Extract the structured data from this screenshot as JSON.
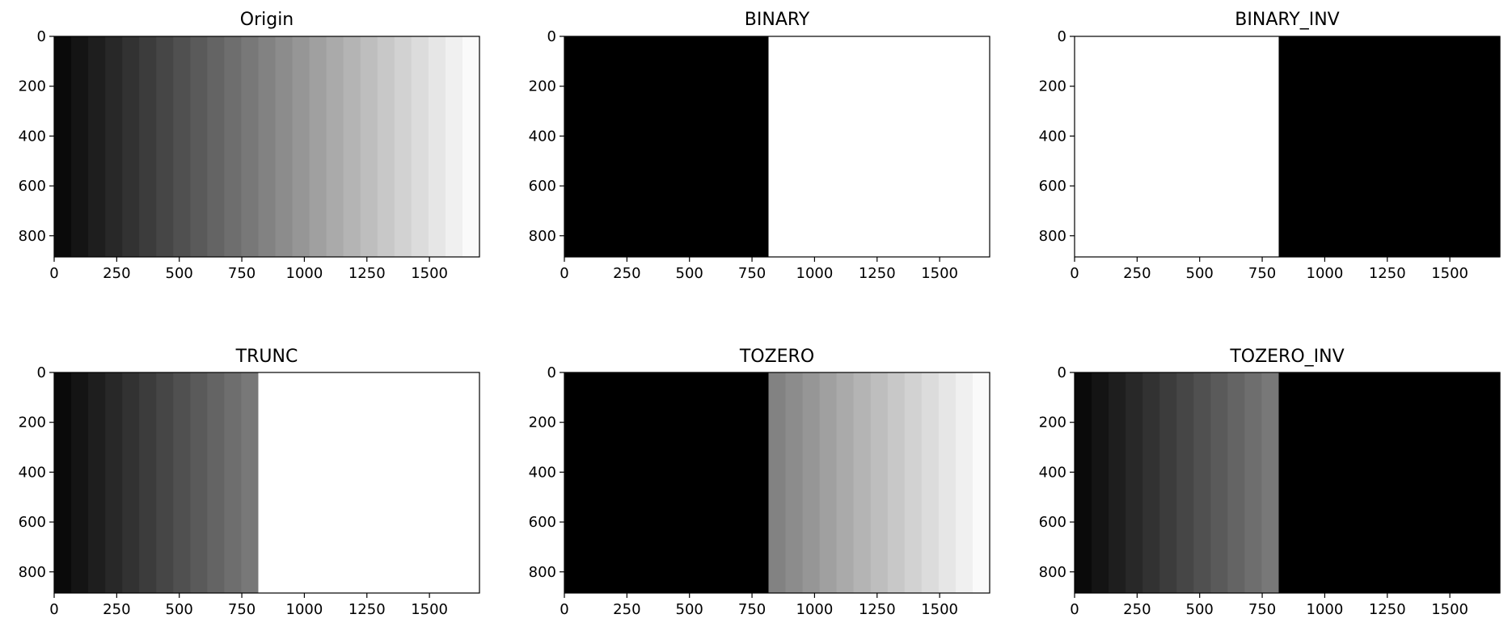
{
  "chart_data": [
    {
      "type": "heatmap",
      "title": "Origin",
      "threshold_mode": "none",
      "xlim": [
        0,
        1700
      ],
      "ylim": [
        885,
        0
      ],
      "x_ticks": [
        0,
        250,
        500,
        750,
        1000,
        1250,
        1500
      ],
      "y_ticks": [
        0,
        200,
        400,
        600,
        800
      ],
      "colormap": "gray"
    },
    {
      "type": "heatmap",
      "title": "BINARY",
      "threshold_mode": "binary",
      "xlim": [
        0,
        1700
      ],
      "ylim": [
        885,
        0
      ],
      "x_ticks": [
        0,
        250,
        500,
        750,
        1000,
        1250,
        1500
      ],
      "y_ticks": [
        0,
        200,
        400,
        600,
        800
      ],
      "colormap": "gray"
    },
    {
      "type": "heatmap",
      "title": "BINARY_INV",
      "threshold_mode": "binary_inv",
      "xlim": [
        0,
        1700
      ],
      "ylim": [
        885,
        0
      ],
      "x_ticks": [
        0,
        250,
        500,
        750,
        1000,
        1250,
        1500
      ],
      "y_ticks": [
        0,
        200,
        400,
        600,
        800
      ],
      "colormap": "gray"
    },
    {
      "type": "heatmap",
      "title": "TRUNC",
      "threshold_mode": "trunc",
      "xlim": [
        0,
        1700
      ],
      "ylim": [
        885,
        0
      ],
      "x_ticks": [
        0,
        250,
        500,
        750,
        1000,
        1250,
        1500
      ],
      "y_ticks": [
        0,
        200,
        400,
        600,
        800
      ],
      "colormap": "gray"
    },
    {
      "type": "heatmap",
      "title": "TOZERO",
      "threshold_mode": "tozero",
      "xlim": [
        0,
        1700
      ],
      "ylim": [
        885,
        0
      ],
      "x_ticks": [
        0,
        250,
        500,
        750,
        1000,
        1250,
        1500
      ],
      "y_ticks": [
        0,
        200,
        400,
        600,
        800
      ],
      "colormap": "gray"
    },
    {
      "type": "heatmap",
      "title": "TOZERO_INV",
      "threshold_mode": "tozero_inv",
      "xlim": [
        0,
        1700
      ],
      "ylim": [
        885,
        0
      ],
      "x_ticks": [
        0,
        250,
        500,
        750,
        1000,
        1250,
        1500
      ],
      "y_ticks": [
        0,
        200,
        400,
        600,
        800
      ],
      "colormap": "gray"
    }
  ],
  "image_data": {
    "column_width": 68,
    "column_levels": [
      10,
      20,
      30,
      40,
      50,
      60,
      70,
      80,
      90,
      100,
      110,
      120,
      130,
      140,
      150,
      160,
      170,
      180,
      190,
      200,
      210,
      220,
      230,
      240,
      250
    ],
    "threshold": 127,
    "maxval": 255
  }
}
